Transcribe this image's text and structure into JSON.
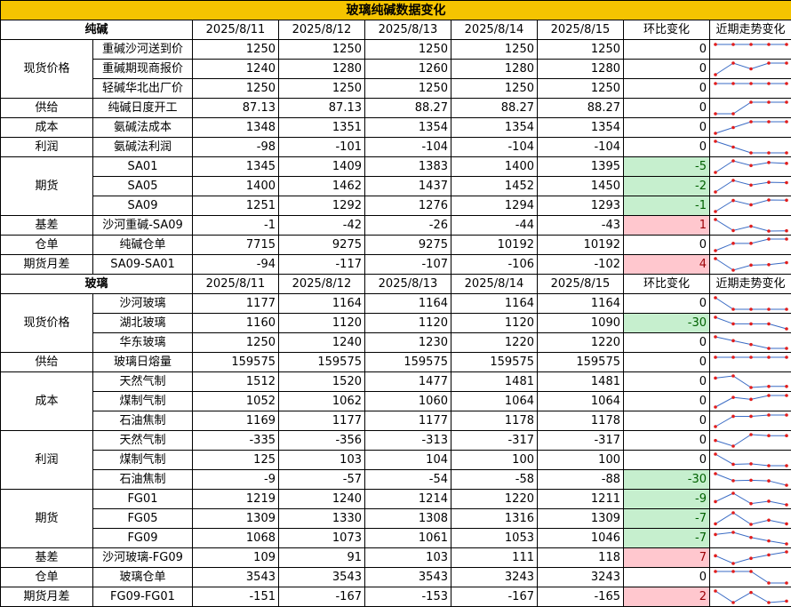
{
  "title": "玻璃纯碱数据变化",
  "colors": {
    "title_bg": "#f5c400",
    "neg_bg": "#c6efce",
    "neg_text": "#006100",
    "pos_bg": "#ffc7ce",
    "pos_text": "#9c0006",
    "spark_line": "#3a6bc4",
    "spark_dot": "#e11d1d"
  },
  "sections": [
    {
      "name": "纯碱",
      "headers": [
        "2025/8/11",
        "2025/8/12",
        "2025/8/13",
        "2025/8/14",
        "2025/8/15"
      ],
      "change_label": "环比变化",
      "trend_label": "近期走势变化",
      "groups": [
        {
          "category": "现货价格",
          "rows": [
            {
              "item": "重碱沙河送到价",
              "values": [
                "1250",
                "1250",
                "1250",
                "1250",
                "1250"
              ],
              "change": "0"
            },
            {
              "item": "重碱期现商报价",
              "values": [
                "1240",
                "1280",
                "1260",
                "1280",
                "1280"
              ],
              "change": "0"
            },
            {
              "item": "轻碱华北出厂价",
              "values": [
                "1250",
                "1250",
                "1250",
                "1250",
                "1250"
              ],
              "change": "0"
            }
          ]
        },
        {
          "category": "供给",
          "rows": [
            {
              "item": "纯碱日度开工",
              "values": [
                "87.13",
                "87.13",
                "88.27",
                "88.27",
                "88.27"
              ],
              "change": "0"
            }
          ]
        },
        {
          "category": "成本",
          "rows": [
            {
              "item": "氨碱法成本",
              "values": [
                "1348",
                "1351",
                "1354",
                "1354",
                "1354"
              ],
              "change": "0"
            }
          ]
        },
        {
          "category": "利润",
          "rows": [
            {
              "item": "氨碱法利润",
              "values": [
                "-98",
                "-101",
                "-104",
                "-104",
                "-104"
              ],
              "change": "0"
            }
          ]
        },
        {
          "category": "期货",
          "rows": [
            {
              "item": "SA01",
              "values": [
                "1345",
                "1409",
                "1383",
                "1400",
                "1395"
              ],
              "change": "-5"
            },
            {
              "item": "SA05",
              "values": [
                "1400",
                "1462",
                "1437",
                "1452",
                "1450"
              ],
              "change": "-2"
            },
            {
              "item": "SA09",
              "values": [
                "1251",
                "1292",
                "1276",
                "1294",
                "1293"
              ],
              "change": "-1"
            }
          ]
        },
        {
          "category": "基差",
          "rows": [
            {
              "item": "沙河重碱-SA09",
              "values": [
                "-1",
                "-42",
                "-26",
                "-44",
                "-43"
              ],
              "change": "1"
            }
          ]
        },
        {
          "category": "仓单",
          "rows": [
            {
              "item": "纯碱仓单",
              "values": [
                "7715",
                "9275",
                "9275",
                "10192",
                "10192"
              ],
              "change": "0"
            }
          ]
        },
        {
          "category": "期货月差",
          "rows": [
            {
              "item": "SA09-SA01",
              "values": [
                "-94",
                "-117",
                "-107",
                "-106",
                "-102"
              ],
              "change": "4"
            }
          ]
        }
      ]
    },
    {
      "name": "玻璃",
      "headers": [
        "2025/8/11",
        "2025/8/12",
        "2025/8/13",
        "2025/8/14",
        "2025/8/15"
      ],
      "change_label": "环比变化",
      "trend_label": "近期走势变化",
      "groups": [
        {
          "category": "现货价格",
          "rows": [
            {
              "item": "沙河玻璃",
              "values": [
                "1177",
                "1164",
                "1164",
                "1164",
                "1164"
              ],
              "change": "0"
            },
            {
              "item": "湖北玻璃",
              "values": [
                "1160",
                "1120",
                "1120",
                "1120",
                "1090"
              ],
              "change": "-30"
            },
            {
              "item": "华东玻璃",
              "values": [
                "1250",
                "1240",
                "1230",
                "1220",
                "1220"
              ],
              "change": "0"
            }
          ]
        },
        {
          "category": "供给",
          "rows": [
            {
              "item": "玻璃日熔量",
              "values": [
                "159575",
                "159575",
                "159575",
                "159575",
                "159575"
              ],
              "change": "0"
            }
          ]
        },
        {
          "category": "成本",
          "rows": [
            {
              "item": "天然气制",
              "values": [
                "1512",
                "1520",
                "1477",
                "1481",
                "1481"
              ],
              "change": "0"
            },
            {
              "item": "煤制气制",
              "values": [
                "1052",
                "1062",
                "1060",
                "1064",
                "1064"
              ],
              "change": "0"
            },
            {
              "item": "石油焦制",
              "values": [
                "1169",
                "1177",
                "1177",
                "1178",
                "1178"
              ],
              "change": "0"
            }
          ]
        },
        {
          "category": "利润",
          "rows": [
            {
              "item": "天然气制",
              "values": [
                "-335",
                "-356",
                "-313",
                "-317",
                "-317"
              ],
              "change": "0"
            },
            {
              "item": "煤制气制",
              "values": [
                "125",
                "103",
                "104",
                "100",
                "100"
              ],
              "change": "0"
            },
            {
              "item": "石油焦制",
              "values": [
                "-9",
                "-57",
                "-54",
                "-58",
                "-88"
              ],
              "change": "-30"
            }
          ]
        },
        {
          "category": "期货",
          "rows": [
            {
              "item": "FG01",
              "values": [
                "1219",
                "1240",
                "1214",
                "1220",
                "1211"
              ],
              "change": "-9"
            },
            {
              "item": "FG05",
              "values": [
                "1309",
                "1330",
                "1308",
                "1316",
                "1309"
              ],
              "change": "-7"
            },
            {
              "item": "FG09",
              "values": [
                "1068",
                "1073",
                "1061",
                "1053",
                "1046"
              ],
              "change": "-7"
            }
          ]
        },
        {
          "category": "基差",
          "rows": [
            {
              "item": "沙河玻璃-FG09",
              "values": [
                "109",
                "91",
                "103",
                "111",
                "118"
              ],
              "change": "7"
            }
          ]
        },
        {
          "category": "仓单",
          "rows": [
            {
              "item": "玻璃仓单",
              "values": [
                "3543",
                "3543",
                "3543",
                "3243",
                "3243"
              ],
              "change": "0"
            }
          ]
        },
        {
          "category": "期货月差",
          "rows": [
            {
              "item": "FG09-FG01",
              "values": [
                "-151",
                "-167",
                "-153",
                "-167",
                "-165"
              ],
              "change": "2"
            }
          ]
        }
      ]
    }
  ]
}
